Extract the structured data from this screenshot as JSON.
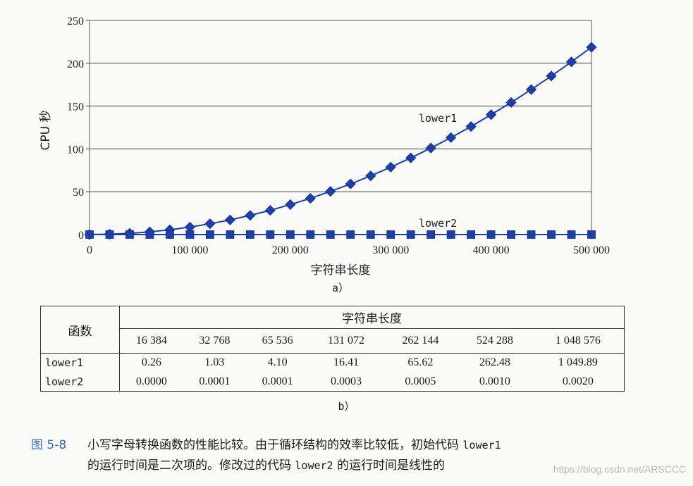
{
  "chart_data": {
    "type": "line",
    "xlabel": "字符串长度",
    "ylabel": "CPU 秒",
    "xlim": [
      0,
      500000
    ],
    "ylim": [
      0,
      250
    ],
    "xticks": [
      0,
      100000,
      200000,
      300000,
      400000,
      500000
    ],
    "xtick_labels": [
      "0",
      "100 000",
      "200 000",
      "300 000",
      "400 000",
      "500 000"
    ],
    "yticks": [
      0,
      50,
      100,
      150,
      200,
      250
    ],
    "ytick_labels": [
      "0",
      "50",
      "100",
      "150",
      "200",
      "250"
    ],
    "grid": "horizontal",
    "color": "#1f3fa8",
    "subfigure_label": "a）",
    "series": [
      {
        "name": "lower1",
        "marker": "diamond",
        "x": [
          0,
          20000,
          40000,
          60000,
          80000,
          100000,
          120000,
          140000,
          160000,
          180000,
          200000,
          220000,
          240000,
          260000,
          280000,
          300000,
          320000,
          340000,
          360000,
          380000,
          400000,
          420000,
          440000,
          460000,
          480000,
          500000
        ],
        "values": [
          0,
          0.4,
          1.4,
          3.1,
          5.6,
          8.7,
          12.6,
          17.1,
          22.4,
          28.3,
          35,
          42.3,
          50.4,
          59.1,
          68.5,
          78.7,
          89.5,
          101,
          113.2,
          126.1,
          140,
          154.2,
          169.3,
          185.1,
          201.6,
          218.7
        ]
      },
      {
        "name": "lower2",
        "marker": "square",
        "x": [
          0,
          20000,
          40000,
          60000,
          80000,
          100000,
          120000,
          140000,
          160000,
          180000,
          200000,
          220000,
          240000,
          260000,
          280000,
          300000,
          320000,
          340000,
          360000,
          380000,
          400000,
          420000,
          440000,
          460000,
          480000,
          500000
        ],
        "values": [
          0,
          0,
          0,
          0,
          0,
          0,
          0,
          0,
          0,
          0,
          0,
          0,
          0,
          0,
          0,
          0,
          0,
          0,
          0,
          0,
          0,
          0,
          0,
          0,
          0,
          0
        ]
      }
    ]
  },
  "table": {
    "func_header": "函数",
    "group_header": "字符串长度",
    "lengths": [
      "16 384",
      "32 768",
      "65 536",
      "131 072",
      "262 144",
      "524 288",
      "1 048 576"
    ],
    "rows": [
      {
        "name": "lower1",
        "values": [
          "0.26",
          "1.03",
          "4.10",
          "16.41",
          "65.62",
          "262.48",
          "1 049.89"
        ]
      },
      {
        "name": "lower2",
        "values": [
          "0.0000",
          "0.0001",
          "0.0001",
          "0.0003",
          "0.0005",
          "0.0010",
          "0.0020"
        ]
      }
    ],
    "subfigure_label": "b）"
  },
  "caption": {
    "figure": "图 5-8",
    "part1": "小写字母转换函数的性能比较。由于循环结构的效率比较低，初始代码",
    "code1": "lower1",
    "part2": "的运行时间是二次项的。修改过的代码",
    "code2": "lower2",
    "part3": "的运行时间是线性的"
  },
  "watermark": "https://blog.csdn.net/ARSCCC"
}
